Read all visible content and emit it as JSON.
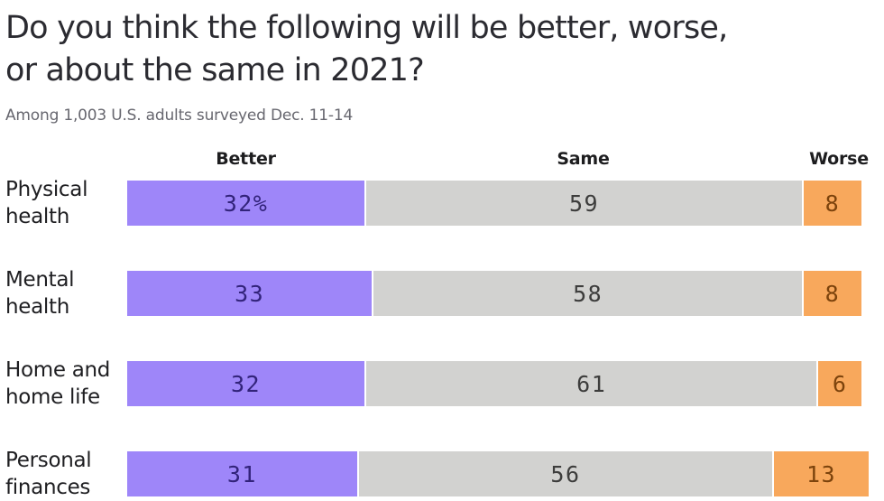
{
  "chart_data": {
    "type": "bar",
    "orientation": "horizontal-stacked",
    "title": "Do you think the following will be better, worse, or about the same in 2021?",
    "title_lines": [
      "Do you think the following will be better, worse,",
      "or about the same in 2021?"
    ],
    "subtitle": "Among 1,003 U.S. adults surveyed Dec. 11-14",
    "categories": [
      "Physical\nhealth",
      "Mental\nhealth",
      "Home and\nhome life",
      "Personal\nfinances"
    ],
    "series": [
      {
        "name": "Better",
        "color": "#9e86f9",
        "label_color": "#32237a",
        "values": [
          32,
          33,
          32,
          31
        ]
      },
      {
        "name": "Same",
        "color": "#d2d2d0",
        "label_color": "#3d3d3c",
        "values": [
          59,
          58,
          61,
          56
        ]
      },
      {
        "name": "Worse",
        "color": "#f8a85c",
        "label_color": "#7c430c",
        "values": [
          8,
          8,
          6,
          13
        ]
      }
    ],
    "value_labels": [
      [
        "32%",
        "59",
        "8"
      ],
      [
        "33",
        "58",
        "8"
      ],
      [
        "32",
        "61",
        "6"
      ],
      [
        "31",
        "56",
        "13"
      ]
    ],
    "xlim": [
      0,
      100
    ],
    "grid": false,
    "legend_position": "top",
    "background": "#ffffff"
  }
}
